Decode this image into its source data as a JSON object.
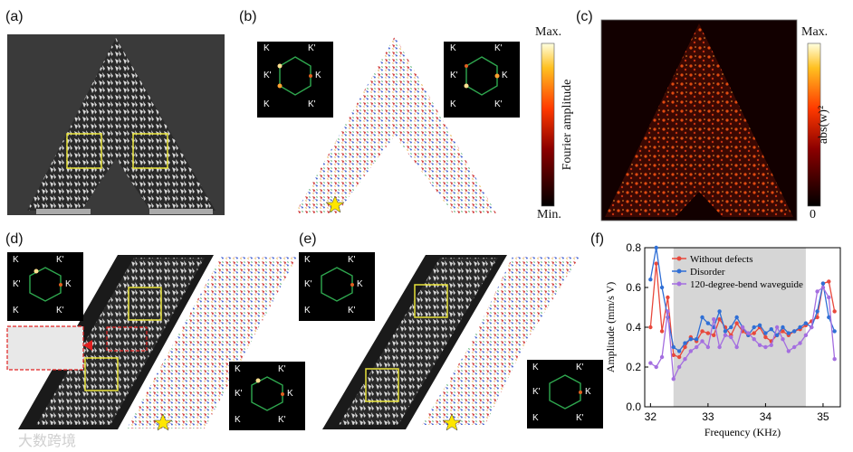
{
  "panels": {
    "a": "(a)",
    "b": "(b)",
    "c": "(c)",
    "d": "(d)",
    "e": "(e)",
    "f": "(f)"
  },
  "bz_labels": {
    "k": "K",
    "kp": "K'"
  },
  "colorbar_b": {
    "max": "Max.",
    "min": "Min.",
    "label": "Fourier amplitude"
  },
  "colorbar_c": {
    "max": "Max.",
    "min": "0",
    "label": "abs(w)²"
  },
  "watermark": "大数跨境",
  "colors": {
    "highlight": "#e8e23a",
    "defect": "#e02020",
    "hexagon": "#2fa84f"
  },
  "chart_data": {
    "type": "line",
    "title": "",
    "xlabel": "Frequency (KHz)",
    "ylabel": "Amplitude (mm/s V)",
    "xlim": [
      31.9,
      35.3
    ],
    "ylim": [
      0.0,
      0.8
    ],
    "xticks": [
      32,
      33,
      34,
      35
    ],
    "yticks": [
      0.0,
      0.2,
      0.4,
      0.6,
      0.8
    ],
    "shaded_band": [
      32.4,
      34.7
    ],
    "legend": "top-left",
    "series": [
      {
        "name": "Without defects",
        "color": "#e8483c",
        "x": [
          32.0,
          32.1,
          32.2,
          32.3,
          32.4,
          32.5,
          32.6,
          32.7,
          32.8,
          32.9,
          33.0,
          33.1,
          33.2,
          33.3,
          33.4,
          33.5,
          33.6,
          33.7,
          33.8,
          33.9,
          34.0,
          34.1,
          34.2,
          34.3,
          34.4,
          34.5,
          34.6,
          34.7,
          34.8,
          34.9,
          35.0,
          35.1,
          35.2
        ],
        "y": [
          0.4,
          0.72,
          0.38,
          0.55,
          0.26,
          0.25,
          0.3,
          0.35,
          0.33,
          0.38,
          0.37,
          0.36,
          0.44,
          0.4,
          0.36,
          0.42,
          0.38,
          0.36,
          0.37,
          0.4,
          0.35,
          0.33,
          0.36,
          0.38,
          0.36,
          0.38,
          0.39,
          0.41,
          0.43,
          0.45,
          0.62,
          0.63,
          0.48
        ]
      },
      {
        "name": "Disorder",
        "color": "#2f6fd6",
        "x": [
          32.0,
          32.1,
          32.2,
          32.3,
          32.4,
          32.5,
          32.6,
          32.7,
          32.8,
          32.9,
          33.0,
          33.1,
          33.2,
          33.3,
          33.4,
          33.5,
          33.6,
          33.7,
          33.8,
          33.9,
          34.0,
          34.1,
          34.2,
          34.3,
          34.4,
          34.5,
          34.6,
          34.7,
          34.8,
          34.9,
          35.0,
          35.1,
          35.2
        ],
        "y": [
          0.64,
          0.8,
          0.6,
          0.45,
          0.3,
          0.28,
          0.32,
          0.34,
          0.34,
          0.45,
          0.42,
          0.4,
          0.48,
          0.38,
          0.4,
          0.45,
          0.4,
          0.36,
          0.4,
          0.41,
          0.37,
          0.39,
          0.36,
          0.4,
          0.37,
          0.38,
          0.4,
          0.42,
          0.4,
          0.48,
          0.62,
          0.45,
          0.38
        ]
      },
      {
        "name": "120-degree-bend waveguide",
        "color": "#a46ee0",
        "x": [
          32.0,
          32.1,
          32.2,
          32.3,
          32.4,
          32.5,
          32.6,
          32.7,
          32.8,
          32.9,
          33.0,
          33.1,
          33.2,
          33.3,
          33.4,
          33.5,
          33.6,
          33.7,
          33.8,
          33.9,
          34.0,
          34.1,
          34.2,
          34.3,
          34.4,
          34.5,
          34.6,
          34.7,
          34.8,
          34.9,
          35.0,
          35.1,
          35.2
        ],
        "y": [
          0.22,
          0.2,
          0.25,
          0.48,
          0.14,
          0.2,
          0.24,
          0.28,
          0.3,
          0.33,
          0.3,
          0.44,
          0.3,
          0.36,
          0.35,
          0.3,
          0.4,
          0.37,
          0.34,
          0.31,
          0.3,
          0.31,
          0.4,
          0.34,
          0.28,
          0.3,
          0.32,
          0.36,
          0.4,
          0.58,
          0.6,
          0.55,
          0.24
        ]
      }
    ]
  }
}
